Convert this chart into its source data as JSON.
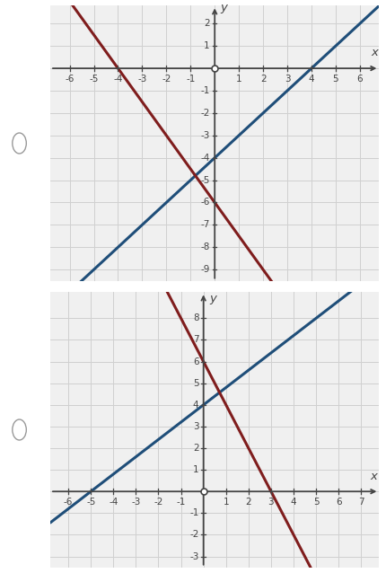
{
  "graph1": {
    "xlim": [
      -6.8,
      6.8
    ],
    "ylim": [
      -9.5,
      2.8
    ],
    "xticks": [
      -6,
      -5,
      -4,
      -3,
      -2,
      -1,
      1,
      2,
      3,
      4,
      5,
      6
    ],
    "yticks": [
      -9,
      -8,
      -7,
      -6,
      -5,
      -4,
      -3,
      -2,
      -1,
      1,
      2
    ],
    "blue_slope": 1.0,
    "blue_intercept": -4.0,
    "red_slope": -1.5,
    "red_intercept": -6.0,
    "blue_color": "#1f4e79",
    "red_color": "#7f1d1d",
    "line_width": 2.2
  },
  "graph2": {
    "xlim": [
      -6.8,
      7.8
    ],
    "ylim": [
      -3.5,
      9.2
    ],
    "xticks": [
      -6,
      -5,
      -4,
      -3,
      -2,
      -1,
      1,
      2,
      3,
      4,
      5,
      6,
      7
    ],
    "yticks": [
      -3,
      -2,
      -1,
      1,
      2,
      3,
      4,
      5,
      6,
      7,
      8
    ],
    "blue_slope": 0.8,
    "blue_intercept": 4.0,
    "red_slope": -2.0,
    "red_intercept": 6.0,
    "blue_color": "#1f4e79",
    "red_color": "#7f1d1d",
    "line_width": 2.2
  },
  "bg_color": "#ffffff",
  "grid_color": "#d0d0d0",
  "axis_color": "#444444",
  "tick_fontsize": 7.5,
  "panel_bg": "#f0f0f0",
  "radio_color": "#999999"
}
